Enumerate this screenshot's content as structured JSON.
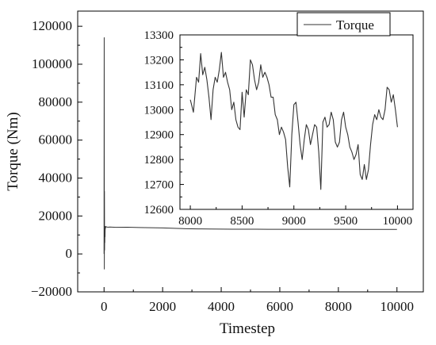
{
  "chart_data": [
    {
      "type": "line",
      "role": "main",
      "xlabel": "Timestep",
      "ylabel": "Torque (Nm)",
      "xlim": [
        -900,
        10900
      ],
      "ylim": [
        -20000,
        128000
      ],
      "xticks": [
        0,
        2000,
        4000,
        6000,
        8000,
        10000
      ],
      "xtick_labels": [
        "0",
        "2000",
        "4000",
        "6000",
        "8000",
        "10000"
      ],
      "yticks": [
        -20000,
        0,
        20000,
        40000,
        60000,
        80000,
        100000,
        120000
      ],
      "ytick_labels": [
        "−20000",
        "0",
        "20000",
        "40000",
        "60000",
        "80000",
        "100000",
        "120000"
      ],
      "legend": {
        "position": "top-right",
        "entries": [
          "Torque"
        ]
      },
      "series": [
        {
          "name": "Torque",
          "color": "#333333",
          "x": [
            0,
            5,
            8,
            10,
            14,
            18,
            22,
            26,
            30,
            34,
            38,
            42,
            50,
            60,
            80,
            120,
            200,
            400,
            800,
            1200,
            1600,
            2000,
            2400,
            2800,
            3200,
            3600,
            4000,
            4400,
            4800,
            5200,
            5600,
            6000,
            6400,
            6800,
            7200,
            7600,
            8000,
            8400,
            8800,
            9200,
            9600,
            10000
          ],
          "y": [
            0,
            114000,
            30000,
            -8000,
            33000,
            2000,
            10000,
            6000,
            12500,
            9000,
            14500,
            13000,
            14500,
            14000,
            14300,
            14100,
            14200,
            14000,
            14100,
            13900,
            13800,
            13700,
            13500,
            13300,
            13200,
            13150,
            13100,
            13050,
            13050,
            13050,
            13000,
            13000,
            13000,
            13000,
            12980,
            12960,
            13000,
            12980,
            12950,
            12950,
            12900,
            12950
          ]
        }
      ]
    },
    {
      "type": "line",
      "role": "inset",
      "xlabel": "",
      "ylabel": "",
      "xlim": [
        7900,
        10150
      ],
      "ylim": [
        12600,
        13300
      ],
      "xticks": [
        8000,
        8500,
        9000,
        9500,
        10000
      ],
      "xtick_labels": [
        "8000",
        "8500",
        "9000",
        "9500",
        "10000"
      ],
      "yticks": [
        12600,
        12700,
        12800,
        12900,
        13000,
        13100,
        13200,
        13300
      ],
      "ytick_labels": [
        "12600",
        "12700",
        "12800",
        "12900",
        "13000",
        "13100",
        "13200",
        "13300"
      ],
      "series": [
        {
          "name": "Torque",
          "color": "#333333",
          "x": [
            8000,
            8030,
            8060,
            8080,
            8100,
            8120,
            8140,
            8160,
            8180,
            8200,
            8220,
            8240,
            8260,
            8280,
            8300,
            8320,
            8340,
            8360,
            8380,
            8400,
            8420,
            8440,
            8460,
            8480,
            8500,
            8520,
            8540,
            8560,
            8580,
            8600,
            8620,
            8640,
            8660,
            8680,
            8700,
            8720,
            8740,
            8760,
            8780,
            8800,
            8820,
            8840,
            8860,
            8880,
            8900,
            8920,
            8940,
            8960,
            8980,
            9000,
            9020,
            9040,
            9060,
            9080,
            9100,
            9120,
            9140,
            9160,
            9180,
            9200,
            9220,
            9240,
            9260,
            9280,
            9300,
            9320,
            9340,
            9360,
            9380,
            9400,
            9420,
            9440,
            9460,
            9480,
            9500,
            9520,
            9540,
            9560,
            9580,
            9600,
            9620,
            9640,
            9660,
            9680,
            9700,
            9720,
            9740,
            9760,
            9780,
            9800,
            9820,
            9840,
            9860,
            9880,
            9900,
            9920,
            9940,
            9960,
            9980,
            10000
          ],
          "y": [
            13040,
            12990,
            13130,
            13110,
            13225,
            13140,
            13170,
            13120,
            13050,
            12960,
            13080,
            13130,
            13110,
            13160,
            13230,
            13130,
            13150,
            13110,
            13080,
            13000,
            13030,
            12960,
            12930,
            12920,
            13070,
            12970,
            13080,
            13060,
            13200,
            13180,
            13120,
            13080,
            13110,
            13180,
            13130,
            13150,
            13130,
            13100,
            13050,
            13050,
            12980,
            12960,
            12900,
            12930,
            12910,
            12880,
            12770,
            12690,
            12900,
            13020,
            13030,
            12950,
            12860,
            12800,
            12880,
            12940,
            12920,
            12860,
            12900,
            12940,
            12930,
            12830,
            12680,
            12950,
            12970,
            12930,
            12940,
            12990,
            12960,
            12870,
            12850,
            12870,
            12960,
            12990,
            12930,
            12900,
            12850,
            12830,
            12800,
            12820,
            12860,
            12740,
            12720,
            12780,
            12720,
            12760,
            12860,
            12940,
            12980,
            12960,
            13000,
            12970,
            12960,
            13000,
            13090,
            13080,
            13030,
            13060,
            13000,
            12930
          ]
        }
      ]
    }
  ]
}
